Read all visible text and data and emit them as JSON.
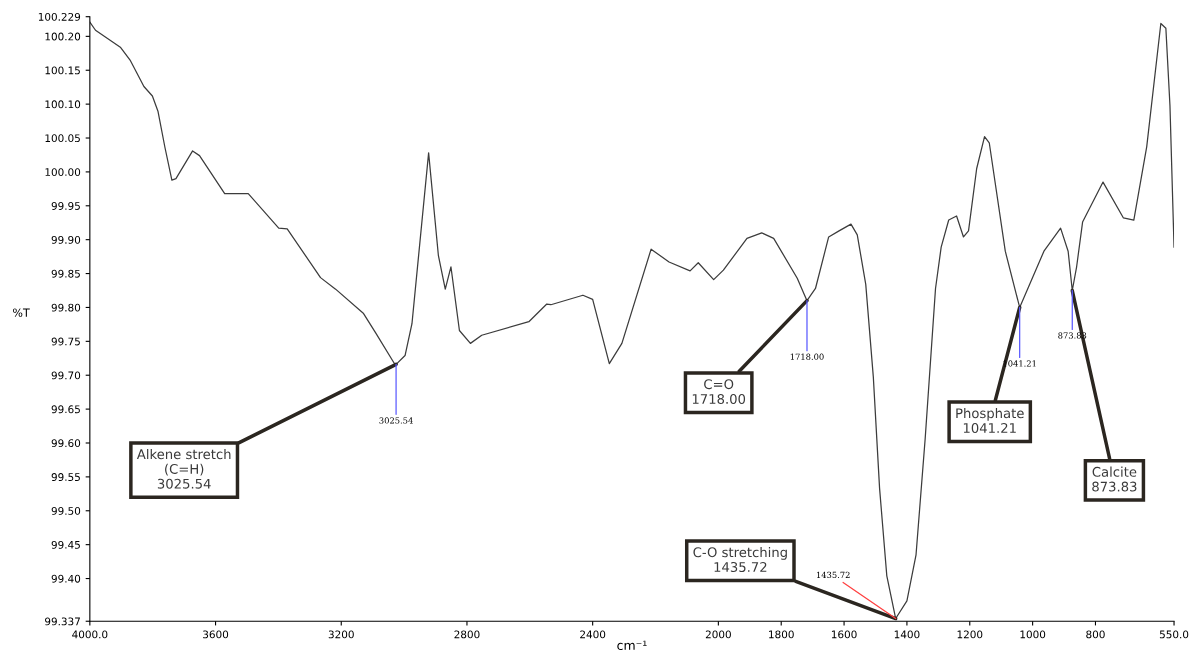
{
  "chart_data": {
    "type": "line",
    "xlabel": "cm⁻¹",
    "ylabel": "%T",
    "x": [
      4000,
      3982,
      3903,
      3872,
      3828,
      3801,
      3783,
      3761,
      3739,
      3726,
      3673,
      3651,
      3571,
      3496,
      3399,
      3372,
      3266,
      3218,
      3129,
      3090,
      3032,
      3025.54,
      2997,
      2975,
      2922,
      2891,
      2869,
      2851,
      2824,
      2789,
      2753,
      2603,
      2546,
      2533,
      2431,
      2400,
      2347,
      2307,
      2214,
      2157,
      2090,
      2064,
      2015,
      1984,
      1909,
      1862,
      1824,
      1749,
      1718,
      1691,
      1649,
      1616,
      1578,
      1558,
      1531,
      1507,
      1487,
      1464,
      1435.72,
      1400,
      1371,
      1342,
      1309,
      1291,
      1267,
      1242,
      1220,
      1204,
      1178,
      1153,
      1138,
      1087,
      1041.21,
      964,
      911,
      887,
      873.83,
      860,
      841,
      776,
      711,
      678,
      637,
      592,
      576,
      563,
      550
    ],
    "series": [
      {
        "color": "#3c3c3c",
        "values": [
          100.221,
          100.209,
          100.184,
          100.165,
          100.126,
          100.112,
          100.089,
          100.036,
          99.988,
          99.99,
          100.031,
          100.024,
          99.968,
          99.968,
          99.917,
          99.916,
          99.844,
          99.827,
          99.791,
          99.762,
          99.718,
          99.716,
          99.729,
          99.776,
          100.028,
          99.877,
          99.827,
          99.86,
          99.766,
          99.747,
          99.759,
          99.779,
          99.805,
          99.804,
          99.818,
          99.812,
          99.717,
          99.747,
          99.886,
          99.867,
          99.854,
          99.866,
          99.841,
          99.855,
          99.902,
          99.91,
          99.902,
          99.843,
          99.81,
          99.828,
          99.904,
          99.913,
          99.923,
          99.907,
          99.834,
          99.698,
          99.533,
          99.404,
          99.341,
          99.367,
          99.435,
          99.606,
          99.828,
          99.889,
          99.929,
          99.935,
          99.904,
          99.913,
          100.005,
          100.052,
          100.043,
          99.883,
          99.8,
          99.883,
          99.917,
          99.883,
          99.825,
          99.86,
          99.926,
          99.985,
          99.932,
          99.929,
          100.037,
          100.219,
          100.212,
          100.098,
          99.889
        ]
      }
    ],
    "xlim": [
      4000,
      550
    ],
    "xticks": [
      {
        "value": 4000,
        "label": "4000.0"
      },
      3600,
      3200,
      2800,
      2400,
      2000,
      1800,
      1600,
      1400,
      1200,
      1000,
      800,
      {
        "value": 550,
        "label": "550.0"
      }
    ],
    "ylim": [
      99.337,
      100.229
    ],
    "yticks": [
      {
        "value": 99.337,
        "label": "99.337"
      },
      {
        "value": 99.4,
        "label": "99.40"
      },
      {
        "value": 99.45,
        "label": "99.45"
      },
      {
        "value": 99.5,
        "label": "99.50"
      },
      {
        "value": 99.55,
        "label": "99.55"
      },
      {
        "value": 99.6,
        "label": "99.60"
      },
      {
        "value": 99.65,
        "label": "99.65"
      },
      {
        "value": 99.7,
        "label": "99.70"
      },
      {
        "value": 99.75,
        "label": "99.75"
      },
      {
        "value": 99.8,
        "label": "99.80"
      },
      {
        "value": 99.85,
        "label": "99.85"
      },
      {
        "value": 99.9,
        "label": "99.90"
      },
      {
        "value": 99.95,
        "label": "99.95"
      },
      {
        "value": 100.0,
        "label": "100.00"
      },
      {
        "value": 100.05,
        "label": "100.05"
      },
      {
        "value": 100.1,
        "label": "100.10"
      },
      {
        "value": 100.15,
        "label": "100.15"
      },
      {
        "value": 100.2,
        "label": "100.20"
      },
      {
        "value": 100.229,
        "label": "100.229"
      }
    ],
    "grid": false,
    "legend": false,
    "annotations": [
      {
        "text": "Alkene stretch\n(C=H)\n3025.54",
        "x": 3025.54,
        "y": 99.716
      },
      {
        "text": "C=O\n1718.00",
        "x": 1718.0,
        "y": 99.81
      },
      {
        "text": "C-O stretching\n1435.72",
        "x": 1435.72,
        "y": 99.341
      },
      {
        "text": "Phosphate\n1041.21",
        "x": 1041.21,
        "y": 99.8
      },
      {
        "text": "Calcite\n873.83",
        "x": 873.83,
        "y": 99.825
      },
      {
        "text": "3025.54",
        "x": 3025.54,
        "y": 99.716
      },
      {
        "text": "1718.00",
        "x": 1718.0,
        "y": 99.81
      },
      {
        "text": "1435.72",
        "x": 1435.72,
        "y": 99.341
      },
      {
        "text": "1041.21",
        "x": 1041.21,
        "y": 99.8
      },
      {
        "text": "873.83",
        "x": 873.83,
        "y": 99.825
      }
    ]
  }
}
